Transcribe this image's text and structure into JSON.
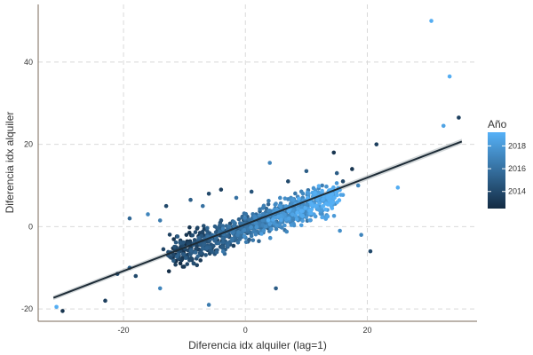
{
  "chart_data": {
    "type": "scatter",
    "title": "",
    "xlabel": "Diferencia idx alquiler (lag=1)",
    "ylabel": "Diferencia idx alquiler",
    "xlim": [
      -34,
      38
    ],
    "ylim": [
      -23,
      54
    ],
    "x_ticks": [
      -20,
      0,
      20
    ],
    "y_ticks": [
      -20,
      0,
      20,
      40
    ],
    "grid": true,
    "legend": {
      "title": "Año",
      "placement": "right",
      "type": "colorbar",
      "range": [
        2012.5,
        2019.2
      ],
      "ticks": [
        2014,
        2016,
        2018
      ],
      "color_low": "#132b43",
      "color_high": "#56b1f7"
    },
    "trendline": {
      "type": "linear",
      "x_range": [
        -31.5,
        35.5
      ],
      "y_start": -17.3,
      "y_end": 20.7,
      "color": "#1d2b36"
    },
    "points": [
      {
        "x": -31,
        "y": -19.5,
        "year": 2019
      },
      {
        "x": -30,
        "y": -20.5,
        "year": 2013
      },
      {
        "x": -23,
        "y": -18,
        "year": 2013.5
      },
      {
        "x": -21,
        "y": -11.5,
        "year": 2014
      },
      {
        "x": -19,
        "y": -10,
        "year": 2015
      },
      {
        "x": -18,
        "y": -12,
        "year": 2014
      },
      {
        "x": -14,
        "y": -15,
        "year": 2017
      },
      {
        "x": -6,
        "y": -19,
        "year": 2016.5
      },
      {
        "x": 5,
        "y": -15,
        "year": 2015
      },
      {
        "x": 20.5,
        "y": -6,
        "year": 2014
      },
      {
        "x": 19,
        "y": -2,
        "year": 2017
      },
      {
        "x": -19,
        "y": 2,
        "year": 2015.5
      },
      {
        "x": -16,
        "y": 3,
        "year": 2017
      },
      {
        "x": -14,
        "y": 1.5,
        "year": 2016.5
      },
      {
        "x": -13,
        "y": 5,
        "year": 2014
      },
      {
        "x": -9,
        "y": 6.5,
        "year": 2015
      },
      {
        "x": -7,
        "y": 5,
        "year": 2016
      },
      {
        "x": -6,
        "y": 8,
        "year": 2014
      },
      {
        "x": -4,
        "y": 9,
        "year": 2013.5
      },
      {
        "x": -1.5,
        "y": 7,
        "year": 2016
      },
      {
        "x": 1,
        "y": 8.5,
        "year": 2014.5
      },
      {
        "x": 4,
        "y": 15.5,
        "year": 2017
      },
      {
        "x": 7,
        "y": 11,
        "year": 2014
      },
      {
        "x": 10,
        "y": 13.5,
        "year": 2015
      },
      {
        "x": 14.5,
        "y": 18,
        "year": 2013
      },
      {
        "x": 21.5,
        "y": 20,
        "year": 2013.5
      },
      {
        "x": 25,
        "y": 9.5,
        "year": 2019
      },
      {
        "x": 30.5,
        "y": 50,
        "year": 2019
      },
      {
        "x": 33.5,
        "y": 36.5,
        "year": 2019
      },
      {
        "x": 32.5,
        "y": 24.5,
        "year": 2018.5
      },
      {
        "x": 35,
        "y": 26.5,
        "year": 2013.5
      },
      {
        "x": 15,
        "y": 13,
        "year": 2015
      },
      {
        "x": 16,
        "y": 11,
        "year": 2014
      },
      {
        "x": 17.5,
        "y": 14,
        "year": 2013
      },
      {
        "x": 18.5,
        "y": 10,
        "year": 2017
      },
      {
        "x": 15.5,
        "y": -1,
        "year": 2017.5
      }
    ]
  }
}
